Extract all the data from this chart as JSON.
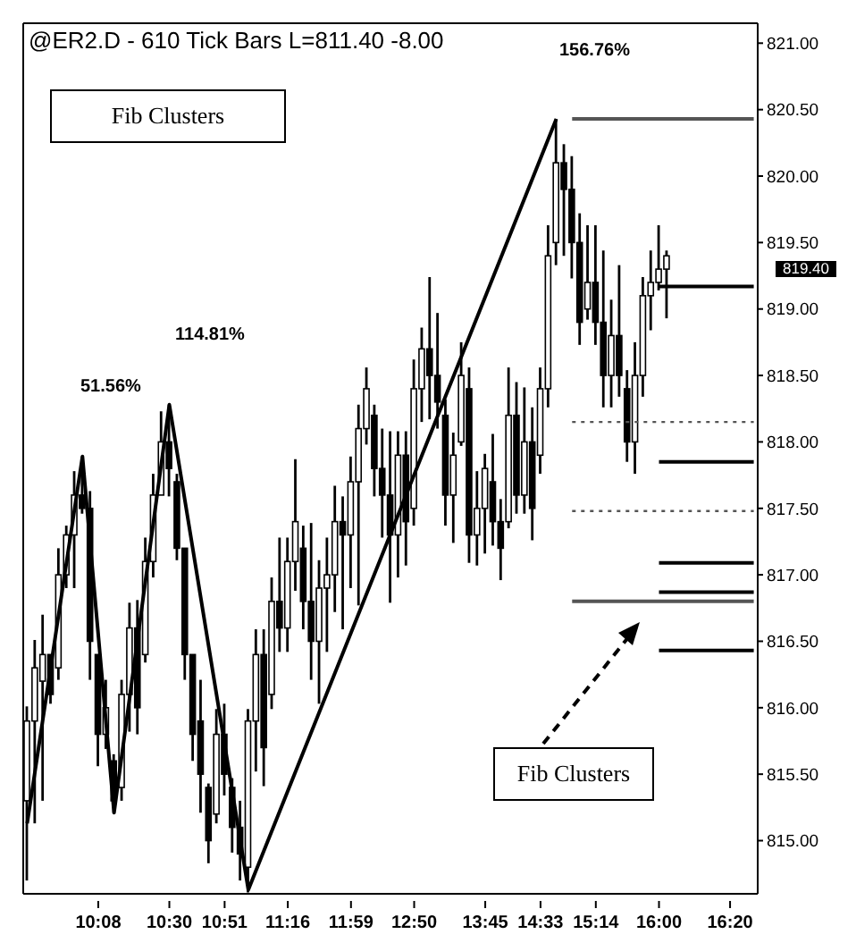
{
  "chart_data": {
    "type": "candlestick",
    "title": "@ER2.D - 610 Tick Bars  L=811.40  -8.00",
    "categories": [
      null,
      null,
      null,
      null,
      null,
      null,
      null,
      null,
      null,
      "10:08",
      null,
      null,
      null,
      null,
      null,
      null,
      null,
      null,
      "10:30",
      null,
      null,
      null,
      null,
      null,
      null,
      "10:51",
      null,
      null,
      null,
      null,
      null,
      null,
      null,
      "11:16",
      null,
      null,
      null,
      null,
      null,
      null,
      null,
      "11:59",
      null,
      null,
      null,
      null,
      null,
      null,
      null,
      "12:50",
      null,
      null,
      null,
      null,
      null,
      null,
      null,
      null,
      "13:45",
      null,
      null,
      null,
      null,
      null,
      null,
      "14:33",
      null,
      null,
      null,
      null,
      null,
      null,
      "15:14",
      null,
      null,
      null,
      null,
      null,
      null,
      null,
      "16:00",
      null,
      null,
      null,
      null,
      null,
      null,
      null,
      null,
      "16:20",
      null,
      null,
      null
    ],
    "ohlc": [
      [
        815.3,
        816.01,
        814.7,
        815.9
      ],
      [
        815.9,
        816.51,
        815.13,
        816.3
      ],
      [
        816.2,
        816.7,
        815.3,
        816.4
      ],
      [
        816.4,
        816.42,
        816.03,
        816.1
      ],
      [
        816.3,
        817.2,
        816.21,
        817.0
      ],
      [
        817.0,
        817.37,
        816.9,
        817.3
      ],
      [
        817.3,
        817.78,
        816.9,
        817.6
      ],
      [
        817.6,
        817.89,
        817.46,
        817.5
      ],
      [
        817.5,
        817.63,
        816.21,
        816.5
      ],
      [
        816.4,
        816.42,
        815.56,
        815.8
      ],
      [
        815.8,
        816.21,
        815.69,
        816.0
      ],
      [
        815.6,
        815.65,
        815.21,
        815.3
      ],
      [
        815.4,
        816.21,
        815.3,
        816.1
      ],
      [
        816.1,
        816.79,
        815.82,
        816.6
      ],
      [
        816.6,
        816.81,
        815.8,
        816.0
      ],
      [
        816.4,
        817.28,
        816.34,
        817.1
      ],
      [
        817.1,
        817.76,
        816.98,
        817.6
      ],
      [
        817.6,
        818.23,
        817.59,
        818.0
      ],
      [
        818.0,
        818.28,
        817.59,
        817.8
      ],
      [
        817.7,
        817.76,
        817.11,
        817.2
      ],
      [
        817.2,
        817.2,
        816.21,
        816.4
      ],
      [
        816.4,
        816.42,
        815.6,
        815.8
      ],
      [
        815.9,
        816.21,
        815.21,
        815.5
      ],
      [
        815.4,
        815.43,
        814.83,
        815.0
      ],
      [
        815.2,
        815.99,
        815.13,
        815.8
      ],
      [
        815.8,
        816.03,
        815.34,
        815.5
      ],
      [
        815.4,
        815.47,
        814.91,
        815.1
      ],
      [
        815.1,
        815.3,
        814.7,
        814.9
      ],
      [
        814.8,
        815.99,
        814.61,
        815.9
      ],
      [
        815.9,
        816.59,
        815.52,
        816.4
      ],
      [
        816.4,
        816.59,
        815.41,
        815.7
      ],
      [
        816.1,
        816.98,
        815.99,
        816.8
      ],
      [
        816.8,
        817.28,
        816.42,
        816.6
      ],
      [
        816.6,
        817.28,
        816.42,
        817.1
      ],
      [
        817.1,
        817.87,
        816.88,
        817.4
      ],
      [
        817.2,
        817.37,
        816.59,
        816.8
      ],
      [
        816.8,
        817.39,
        816.21,
        816.5
      ],
      [
        816.5,
        817.11,
        816.03,
        816.9
      ],
      [
        816.9,
        817.28,
        816.42,
        817.0
      ],
      [
        817.0,
        817.67,
        816.72,
        817.4
      ],
      [
        817.4,
        817.59,
        816.59,
        817.3
      ],
      [
        817.3,
        817.89,
        816.9,
        817.7
      ],
      [
        817.7,
        818.28,
        816.77,
        818.1
      ],
      [
        818.1,
        818.56,
        817.98,
        818.4
      ],
      [
        818.2,
        818.28,
        817.59,
        817.8
      ],
      [
        817.8,
        818.1,
        817.28,
        817.6
      ],
      [
        817.6,
        818.08,
        816.79,
        817.3
      ],
      [
        817.3,
        818.08,
        816.98,
        817.9
      ],
      [
        817.9,
        818.08,
        817.07,
        817.4
      ],
      [
        817.5,
        818.62,
        817.37,
        818.4
      ],
      [
        818.4,
        818.86,
        818.15,
        818.7
      ],
      [
        818.7,
        819.24,
        818.17,
        818.5
      ],
      [
        818.5,
        818.97,
        818.1,
        818.3
      ],
      [
        818.2,
        818.32,
        817.37,
        817.6
      ],
      [
        817.6,
        818.07,
        817.24,
        817.9
      ],
      [
        818.0,
        818.75,
        817.97,
        818.5
      ],
      [
        818.4,
        818.56,
        817.09,
        817.3
      ],
      [
        817.3,
        817.78,
        817.07,
        817.5
      ],
      [
        817.5,
        817.91,
        817.16,
        817.8
      ],
      [
        817.7,
        818.06,
        817.22,
        817.4
      ],
      [
        817.4,
        817.57,
        816.96,
        817.2
      ],
      [
        817.4,
        818.56,
        817.35,
        818.2
      ],
      [
        818.2,
        818.45,
        817.46,
        817.6
      ],
      [
        817.6,
        818.41,
        817.46,
        818.0
      ],
      [
        818.0,
        818.26,
        817.26,
        817.5
      ],
      [
        817.9,
        818.56,
        817.76,
        818.4
      ],
      [
        818.4,
        819.63,
        818.26,
        819.4
      ],
      [
        819.5,
        820.43,
        819.33,
        820.1
      ],
      [
        820.1,
        820.24,
        819.4,
        819.9
      ],
      [
        819.9,
        820.15,
        819.23,
        819.5
      ],
      [
        819.5,
        819.72,
        818.73,
        818.9
      ],
      [
        819.0,
        819.63,
        818.92,
        819.2
      ],
      [
        819.2,
        819.63,
        818.73,
        818.9
      ],
      [
        818.9,
        819.44,
        818.26,
        818.5
      ],
      [
        818.5,
        819.07,
        818.26,
        818.8
      ],
      [
        818.8,
        819.33,
        818.34,
        818.5
      ],
      [
        818.4,
        818.54,
        817.85,
        818.0
      ],
      [
        818.0,
        818.75,
        817.76,
        818.5
      ],
      [
        818.5,
        819.24,
        818.34,
        819.1
      ],
      [
        819.1,
        819.44,
        818.84,
        819.2
      ],
      [
        819.2,
        819.63,
        819.14,
        819.3
      ],
      [
        819.3,
        819.44,
        818.93,
        819.4
      ],
      null,
      null,
      null,
      null,
      null,
      null,
      null,
      null,
      null,
      null,
      null
    ],
    "color": "#000000",
    "series": [
      {
        "type": "line",
        "color": "#000000",
        "line_style": "solid",
        "values": [
          815.13,
          null,
          null,
          null,
          null,
          null,
          null,
          817.89,
          null,
          null,
          null,
          815.21,
          null,
          null,
          null,
          null,
          null,
          null,
          818.28,
          null,
          null,
          null,
          null,
          null,
          null,
          null,
          null,
          null,
          814.63,
          null,
          null,
          null,
          null,
          null,
          null,
          null,
          null,
          null,
          null,
          null,
          null,
          null,
          null,
          null,
          null,
          null,
          null,
          null,
          null,
          null,
          null,
          null,
          null,
          null,
          null,
          null,
          null,
          null,
          null,
          null,
          null,
          null,
          null,
          null,
          null,
          null,
          null,
          820.43,
          null,
          null,
          null,
          null,
          null,
          null,
          null,
          null,
          null,
          null,
          null,
          null,
          null,
          null,
          null,
          null,
          null,
          null,
          null,
          null,
          null,
          null,
          null,
          null,
          null
        ]
      },
      {
        "type": "line",
        "color": "#555555",
        "line_style": "solid",
        "values": [
          null,
          null,
          null,
          null,
          null,
          null,
          null,
          null,
          null,
          null,
          null,
          null,
          null,
          null,
          null,
          null,
          null,
          null,
          null,
          null,
          null,
          null,
          null,
          null,
          null,
          null,
          null,
          null,
          null,
          null,
          null,
          null,
          null,
          null,
          null,
          null,
          null,
          null,
          null,
          null,
          null,
          null,
          null,
          null,
          null,
          null,
          null,
          null,
          null,
          null,
          null,
          null,
          null,
          null,
          null,
          null,
          null,
          null,
          null,
          null,
          null,
          null,
          null,
          null,
          null,
          null,
          null,
          null,
          null,
          820.43,
          null,
          null,
          null,
          null,
          null,
          null,
          null,
          null,
          null,
          null,
          null,
          null,
          null,
          null,
          null,
          null,
          null,
          null,
          null,
          null,
          null,
          null,
          820.43
        ]
      },
      {
        "type": "line",
        "color": "#555555",
        "line_style": "dotted",
        "values": [
          null,
          null,
          null,
          null,
          null,
          null,
          null,
          null,
          null,
          null,
          null,
          null,
          null,
          null,
          null,
          null,
          null,
          null,
          null,
          null,
          null,
          null,
          null,
          null,
          null,
          null,
          null,
          null,
          null,
          null,
          null,
          null,
          null,
          null,
          null,
          null,
          null,
          null,
          null,
          null,
          null,
          null,
          null,
          null,
          null,
          null,
          null,
          null,
          null,
          null,
          null,
          null,
          null,
          null,
          null,
          null,
          null,
          null,
          null,
          null,
          null,
          null,
          null,
          null,
          null,
          null,
          null,
          null,
          null,
          818.15,
          null,
          null,
          null,
          null,
          null,
          null,
          null,
          null,
          null,
          null,
          null,
          null,
          null,
          null,
          null,
          null,
          null,
          null,
          null,
          null,
          null,
          null,
          818.15
        ]
      },
      {
        "type": "line",
        "color": "#555555",
        "line_style": "dotted",
        "values": [
          null,
          null,
          null,
          null,
          null,
          null,
          null,
          null,
          null,
          null,
          null,
          null,
          null,
          null,
          null,
          null,
          null,
          null,
          null,
          null,
          null,
          null,
          null,
          null,
          null,
          null,
          null,
          null,
          null,
          null,
          null,
          null,
          null,
          null,
          null,
          null,
          null,
          null,
          null,
          null,
          null,
          null,
          null,
          null,
          null,
          null,
          null,
          null,
          null,
          null,
          null,
          null,
          null,
          null,
          null,
          null,
          null,
          null,
          null,
          null,
          null,
          null,
          null,
          null,
          null,
          null,
          null,
          null,
          null,
          817.48,
          null,
          null,
          null,
          null,
          null,
          null,
          null,
          null,
          null,
          null,
          null,
          null,
          null,
          null,
          null,
          null,
          null,
          null,
          null,
          null,
          null,
          null,
          817.48
        ]
      },
      {
        "type": "line",
        "color": "#555555",
        "line_style": "solid",
        "values": [
          null,
          null,
          null,
          null,
          null,
          null,
          null,
          null,
          null,
          null,
          null,
          null,
          null,
          null,
          null,
          null,
          null,
          null,
          null,
          null,
          null,
          null,
          null,
          null,
          null,
          null,
          null,
          null,
          null,
          null,
          null,
          null,
          null,
          null,
          null,
          null,
          null,
          null,
          null,
          null,
          null,
          null,
          null,
          null,
          null,
          null,
          null,
          null,
          null,
          null,
          null,
          null,
          null,
          null,
          null,
          null,
          null,
          null,
          null,
          null,
          null,
          null,
          null,
          null,
          null,
          null,
          null,
          null,
          null,
          816.8,
          null,
          null,
          null,
          null,
          null,
          null,
          null,
          null,
          null,
          null,
          null,
          null,
          null,
          null,
          null,
          null,
          null,
          null,
          null,
          null,
          null,
          null,
          816.8
        ]
      },
      {
        "type": "line",
        "color": "#000000",
        "line_style": "solid",
        "values": [
          null,
          null,
          null,
          null,
          null,
          null,
          null,
          null,
          null,
          null,
          null,
          null,
          null,
          null,
          null,
          null,
          null,
          null,
          null,
          null,
          null,
          null,
          null,
          null,
          null,
          null,
          null,
          null,
          null,
          null,
          null,
          null,
          null,
          null,
          null,
          null,
          null,
          null,
          null,
          null,
          null,
          null,
          null,
          null,
          null,
          null,
          null,
          null,
          null,
          null,
          null,
          null,
          null,
          null,
          null,
          null,
          null,
          null,
          null,
          null,
          null,
          null,
          null,
          null,
          null,
          null,
          null,
          null,
          null,
          null,
          null,
          null,
          null,
          null,
          null,
          null,
          null,
          null,
          null,
          null,
          819.17,
          null,
          null,
          null,
          null,
          null,
          null,
          null,
          null,
          null,
          null,
          null,
          819.17
        ]
      },
      {
        "type": "line",
        "color": "#000000",
        "line_style": "solid",
        "values": [
          null,
          null,
          null,
          null,
          null,
          null,
          null,
          null,
          null,
          null,
          null,
          null,
          null,
          null,
          null,
          null,
          null,
          null,
          null,
          null,
          null,
          null,
          null,
          null,
          null,
          null,
          null,
          null,
          null,
          null,
          null,
          null,
          null,
          null,
          null,
          null,
          null,
          null,
          null,
          null,
          null,
          null,
          null,
          null,
          null,
          null,
          null,
          null,
          null,
          null,
          null,
          null,
          null,
          null,
          null,
          null,
          null,
          null,
          null,
          null,
          null,
          null,
          null,
          null,
          null,
          null,
          null,
          null,
          null,
          null,
          null,
          null,
          null,
          null,
          null,
          null,
          null,
          null,
          null,
          null,
          817.85,
          null,
          null,
          null,
          null,
          null,
          null,
          null,
          null,
          null,
          null,
          null,
          817.85
        ]
      },
      {
        "type": "line",
        "color": "#000000",
        "line_style": "solid",
        "values": [
          null,
          null,
          null,
          null,
          null,
          null,
          null,
          null,
          null,
          null,
          null,
          null,
          null,
          null,
          null,
          null,
          null,
          null,
          null,
          null,
          null,
          null,
          null,
          null,
          null,
          null,
          null,
          null,
          null,
          null,
          null,
          null,
          null,
          null,
          null,
          null,
          null,
          null,
          null,
          null,
          null,
          null,
          null,
          null,
          null,
          null,
          null,
          null,
          null,
          null,
          null,
          null,
          null,
          null,
          null,
          null,
          null,
          null,
          null,
          null,
          null,
          null,
          null,
          null,
          null,
          null,
          null,
          null,
          null,
          null,
          null,
          null,
          null,
          null,
          null,
          null,
          null,
          null,
          null,
          null,
          817.09,
          null,
          null,
          null,
          null,
          null,
          null,
          null,
          null,
          null,
          null,
          null,
          817.09
        ]
      },
      {
        "type": "line",
        "color": "#000000",
        "line_style": "solid",
        "values": [
          null,
          null,
          null,
          null,
          null,
          null,
          null,
          null,
          null,
          null,
          null,
          null,
          null,
          null,
          null,
          null,
          null,
          null,
          null,
          null,
          null,
          null,
          null,
          null,
          null,
          null,
          null,
          null,
          null,
          null,
          null,
          null,
          null,
          null,
          null,
          null,
          null,
          null,
          null,
          null,
          null,
          null,
          null,
          null,
          null,
          null,
          null,
          null,
          null,
          null,
          null,
          null,
          null,
          null,
          null,
          null,
          null,
          null,
          null,
          null,
          null,
          null,
          null,
          null,
          null,
          null,
          null,
          null,
          null,
          null,
          null,
          null,
          null,
          null,
          null,
          null,
          null,
          null,
          null,
          null,
          816.87,
          null,
          null,
          null,
          null,
          null,
          null,
          null,
          null,
          null,
          null,
          null,
          816.87
        ]
      },
      {
        "type": "line",
        "color": "#000000",
        "line_style": "solid",
        "values": [
          null,
          null,
          null,
          null,
          null,
          null,
          null,
          null,
          null,
          null,
          null,
          null,
          null,
          null,
          null,
          null,
          null,
          null,
          null,
          null,
          null,
          null,
          null,
          null,
          null,
          null,
          null,
          null,
          null,
          null,
          null,
          null,
          null,
          null,
          null,
          null,
          null,
          null,
          null,
          null,
          null,
          null,
          null,
          null,
          null,
          null,
          null,
          null,
          null,
          null,
          null,
          null,
          null,
          null,
          null,
          null,
          null,
          null,
          null,
          null,
          null,
          null,
          null,
          null,
          null,
          null,
          null,
          null,
          null,
          null,
          null,
          null,
          null,
          null,
          null,
          null,
          null,
          null,
          null,
          null,
          816.43,
          null,
          null,
          null,
          null,
          null,
          null,
          null,
          null,
          null,
          null,
          null,
          816.43
        ]
      }
    ],
    "ylim": [
      814.6,
      821.15
    ],
    "yticks": [
      {
        "value": 815,
        "label": "815.00"
      },
      {
        "value": 815.5,
        "label": "815.50"
      },
      {
        "value": 816,
        "label": "816.00"
      },
      {
        "value": 816.5,
        "label": "816.50"
      },
      {
        "value": 817,
        "label": "817.00"
      },
      {
        "value": 817.5,
        "label": "817.50"
      },
      {
        "value": 818,
        "label": "818.00"
      },
      {
        "value": 818.5,
        "label": "818.50"
      },
      {
        "value": 819,
        "label": "819.00"
      },
      {
        "value": 819.5,
        "label": "819.50"
      },
      {
        "value": 820,
        "label": "820.00"
      },
      {
        "value": 820.5,
        "label": "820.50"
      },
      {
        "value": 821,
        "label": "821.00"
      }
    ],
    "annotations": [
      "51.56%",
      "114.81%",
      "156.76%",
      "Fib Clusters",
      "Fib Clusters",
      "819.40"
    ]
  }
}
